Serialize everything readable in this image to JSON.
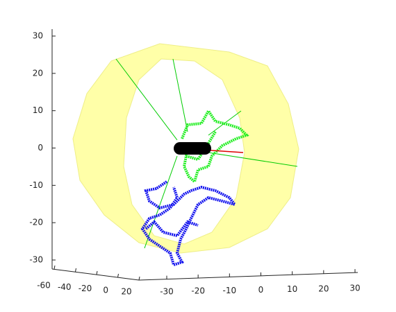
{
  "chart_data": {
    "type": "scatter3d",
    "yticks": [
      30,
      20,
      10,
      0,
      -10,
      -20,
      -30
    ],
    "ylim": [
      -30,
      30
    ],
    "xticks": [
      -60,
      -40,
      -20,
      0,
      20
    ],
    "xlim": [
      -60,
      20
    ],
    "zticks": [
      -30,
      -20,
      -10,
      0,
      10,
      20,
      30
    ],
    "zlim": [
      -30,
      30
    ]
  }
}
